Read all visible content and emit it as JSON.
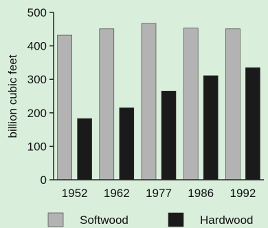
{
  "chart_data": {
    "type": "bar",
    "title": "",
    "xlabel": "",
    "ylabel": "billion cubic feet",
    "ylim": [
      0,
      500
    ],
    "yticks": [
      0,
      100,
      200,
      300,
      400,
      500
    ],
    "categories": [
      "1952",
      "1962",
      "1977",
      "1986",
      "1992"
    ],
    "series": [
      {
        "name": "Softwood",
        "color": "#b3b3b3",
        "values": [
          432,
          451,
          467,
          453,
          451
        ]
      },
      {
        "name": "Hardwood",
        "color": "#1a1a1a",
        "values": [
          183,
          215,
          265,
          311,
          335
        ]
      }
    ],
    "grid": false,
    "legend": "bottom"
  }
}
